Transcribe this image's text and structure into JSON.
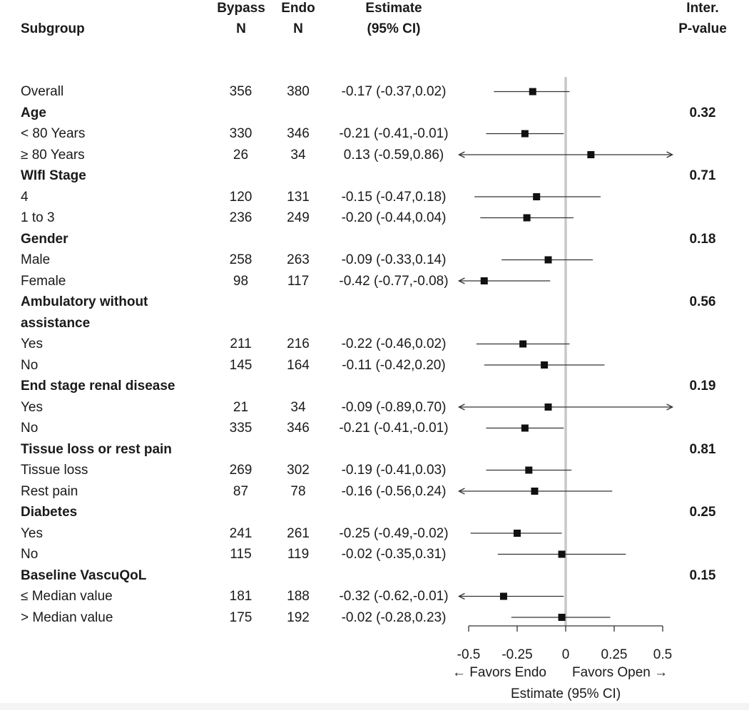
{
  "headers": {
    "subgroup": "Subgroup",
    "bypass_line1": "Bypass",
    "bypass_line2": "N",
    "endo_line1": "Endo",
    "endo_line2": "N",
    "estimate_line1": "Estimate",
    "estimate_line2": "(95% CI)",
    "pvalue_line1": "Inter.",
    "pvalue_line2": "P-value"
  },
  "axis": {
    "favors_left": "← Favors Endo",
    "favors_right": "Favors Open →",
    "xlabel": "Estimate (95% CI)"
  },
  "chart_data": {
    "type": "forest",
    "xlim": [
      -0.5,
      0.5
    ],
    "xticks": [
      -0.5,
      -0.25,
      0,
      0.25,
      0.5
    ],
    "xtick_labels": [
      "-0.5",
      "-0.25",
      "0",
      "0.25",
      "0.5"
    ],
    "reference_line": 0,
    "rows": [
      {
        "label": "Overall",
        "group": false,
        "bypass": "356",
        "endo": "380",
        "estimate_text": "-0.17 (-0.37,0.02)",
        "est": -0.17,
        "lo": -0.37,
        "hi": 0.02,
        "p": ""
      },
      {
        "label": "Age",
        "group": true,
        "p": "0.32"
      },
      {
        "label": "< 80 Years",
        "group": false,
        "bypass": "330",
        "endo": "346",
        "estimate_text": "-0.21 (-0.41,-0.01)",
        "est": -0.21,
        "lo": -0.41,
        "hi": -0.01,
        "p": ""
      },
      {
        "label": "≥ 80 Years",
        "group": false,
        "bypass": "26",
        "endo": "34",
        "estimate_text": "0.13 (-0.59,0.86)",
        "est": 0.13,
        "lo": -0.59,
        "hi": 0.86,
        "p": ""
      },
      {
        "label": "WIfI Stage",
        "group": true,
        "p": "0.71"
      },
      {
        "label": "4",
        "group": false,
        "bypass": "120",
        "endo": "131",
        "estimate_text": "-0.15 (-0.47,0.18)",
        "est": -0.15,
        "lo": -0.47,
        "hi": 0.18,
        "p": ""
      },
      {
        "label": "1 to 3",
        "group": false,
        "bypass": "236",
        "endo": "249",
        "estimate_text": "-0.20 (-0.44,0.04)",
        "est": -0.2,
        "lo": -0.44,
        "hi": 0.04,
        "p": ""
      },
      {
        "label": "Gender",
        "group": true,
        "p": "0.18"
      },
      {
        "label": "Male",
        "group": false,
        "bypass": "258",
        "endo": "263",
        "estimate_text": "-0.09 (-0.33,0.14)",
        "est": -0.09,
        "lo": -0.33,
        "hi": 0.14,
        "p": ""
      },
      {
        "label": "Female",
        "group": false,
        "bypass": "98",
        "endo": "117",
        "estimate_text": "-0.42 (-0.77,-0.08)",
        "est": -0.42,
        "lo": -0.77,
        "hi": -0.08,
        "p": ""
      },
      {
        "label": "Ambulatory without",
        "group": true,
        "p": "0.56"
      },
      {
        "label": "assistance",
        "group": true,
        "p": ""
      },
      {
        "label": "Yes",
        "group": false,
        "bypass": "211",
        "endo": "216",
        "estimate_text": "-0.22 (-0.46,0.02)",
        "est": -0.22,
        "lo": -0.46,
        "hi": 0.02,
        "p": ""
      },
      {
        "label": "No",
        "group": false,
        "bypass": "145",
        "endo": "164",
        "estimate_text": "-0.11 (-0.42,0.20)",
        "est": -0.11,
        "lo": -0.42,
        "hi": 0.2,
        "p": ""
      },
      {
        "label": "End stage renal disease",
        "group": true,
        "p": "0.19"
      },
      {
        "label": "Yes",
        "group": false,
        "bypass": "21",
        "endo": "34",
        "estimate_text": "-0.09 (-0.89,0.70)",
        "est": -0.09,
        "lo": -0.89,
        "hi": 0.7,
        "p": ""
      },
      {
        "label": "No",
        "group": false,
        "bypass": "335",
        "endo": "346",
        "estimate_text": "-0.21 (-0.41,-0.01)",
        "est": -0.21,
        "lo": -0.41,
        "hi": -0.01,
        "p": ""
      },
      {
        "label": "Tissue loss or rest pain",
        "group": true,
        "p": "0.81"
      },
      {
        "label": "Tissue loss",
        "group": false,
        "bypass": "269",
        "endo": "302",
        "estimate_text": "-0.19 (-0.41,0.03)",
        "est": -0.19,
        "lo": -0.41,
        "hi": 0.03,
        "p": ""
      },
      {
        "label": "Rest pain",
        "group": false,
        "bypass": "87",
        "endo": "78",
        "estimate_text": "-0.16 (-0.56,0.24)",
        "est": -0.16,
        "lo": -0.56,
        "hi": 0.24,
        "p": ""
      },
      {
        "label": "Diabetes",
        "group": true,
        "p": "0.25"
      },
      {
        "label": "Yes",
        "group": false,
        "bypass": "241",
        "endo": "261",
        "estimate_text": "-0.25 (-0.49,-0.02)",
        "est": -0.25,
        "lo": -0.49,
        "hi": -0.02,
        "p": ""
      },
      {
        "label": "No",
        "group": false,
        "bypass": "115",
        "endo": "119",
        "estimate_text": "-0.02 (-0.35,0.31)",
        "est": -0.02,
        "lo": -0.35,
        "hi": 0.31,
        "p": ""
      },
      {
        "label": "Baseline VascuQoL",
        "group": true,
        "p": "0.15"
      },
      {
        "label": "≤ Median value",
        "group": false,
        "bypass": "181",
        "endo": "188",
        "estimate_text": "-0.32 (-0.62,-0.01)",
        "est": -0.32,
        "lo": -0.62,
        "hi": -0.01,
        "p": ""
      },
      {
        "label": "> Median value",
        "group": false,
        "bypass": "175",
        "endo": "192",
        "estimate_text": "-0.02 (-0.28,0.23)",
        "est": -0.02,
        "lo": -0.28,
        "hi": 0.23,
        "p": ""
      }
    ]
  }
}
